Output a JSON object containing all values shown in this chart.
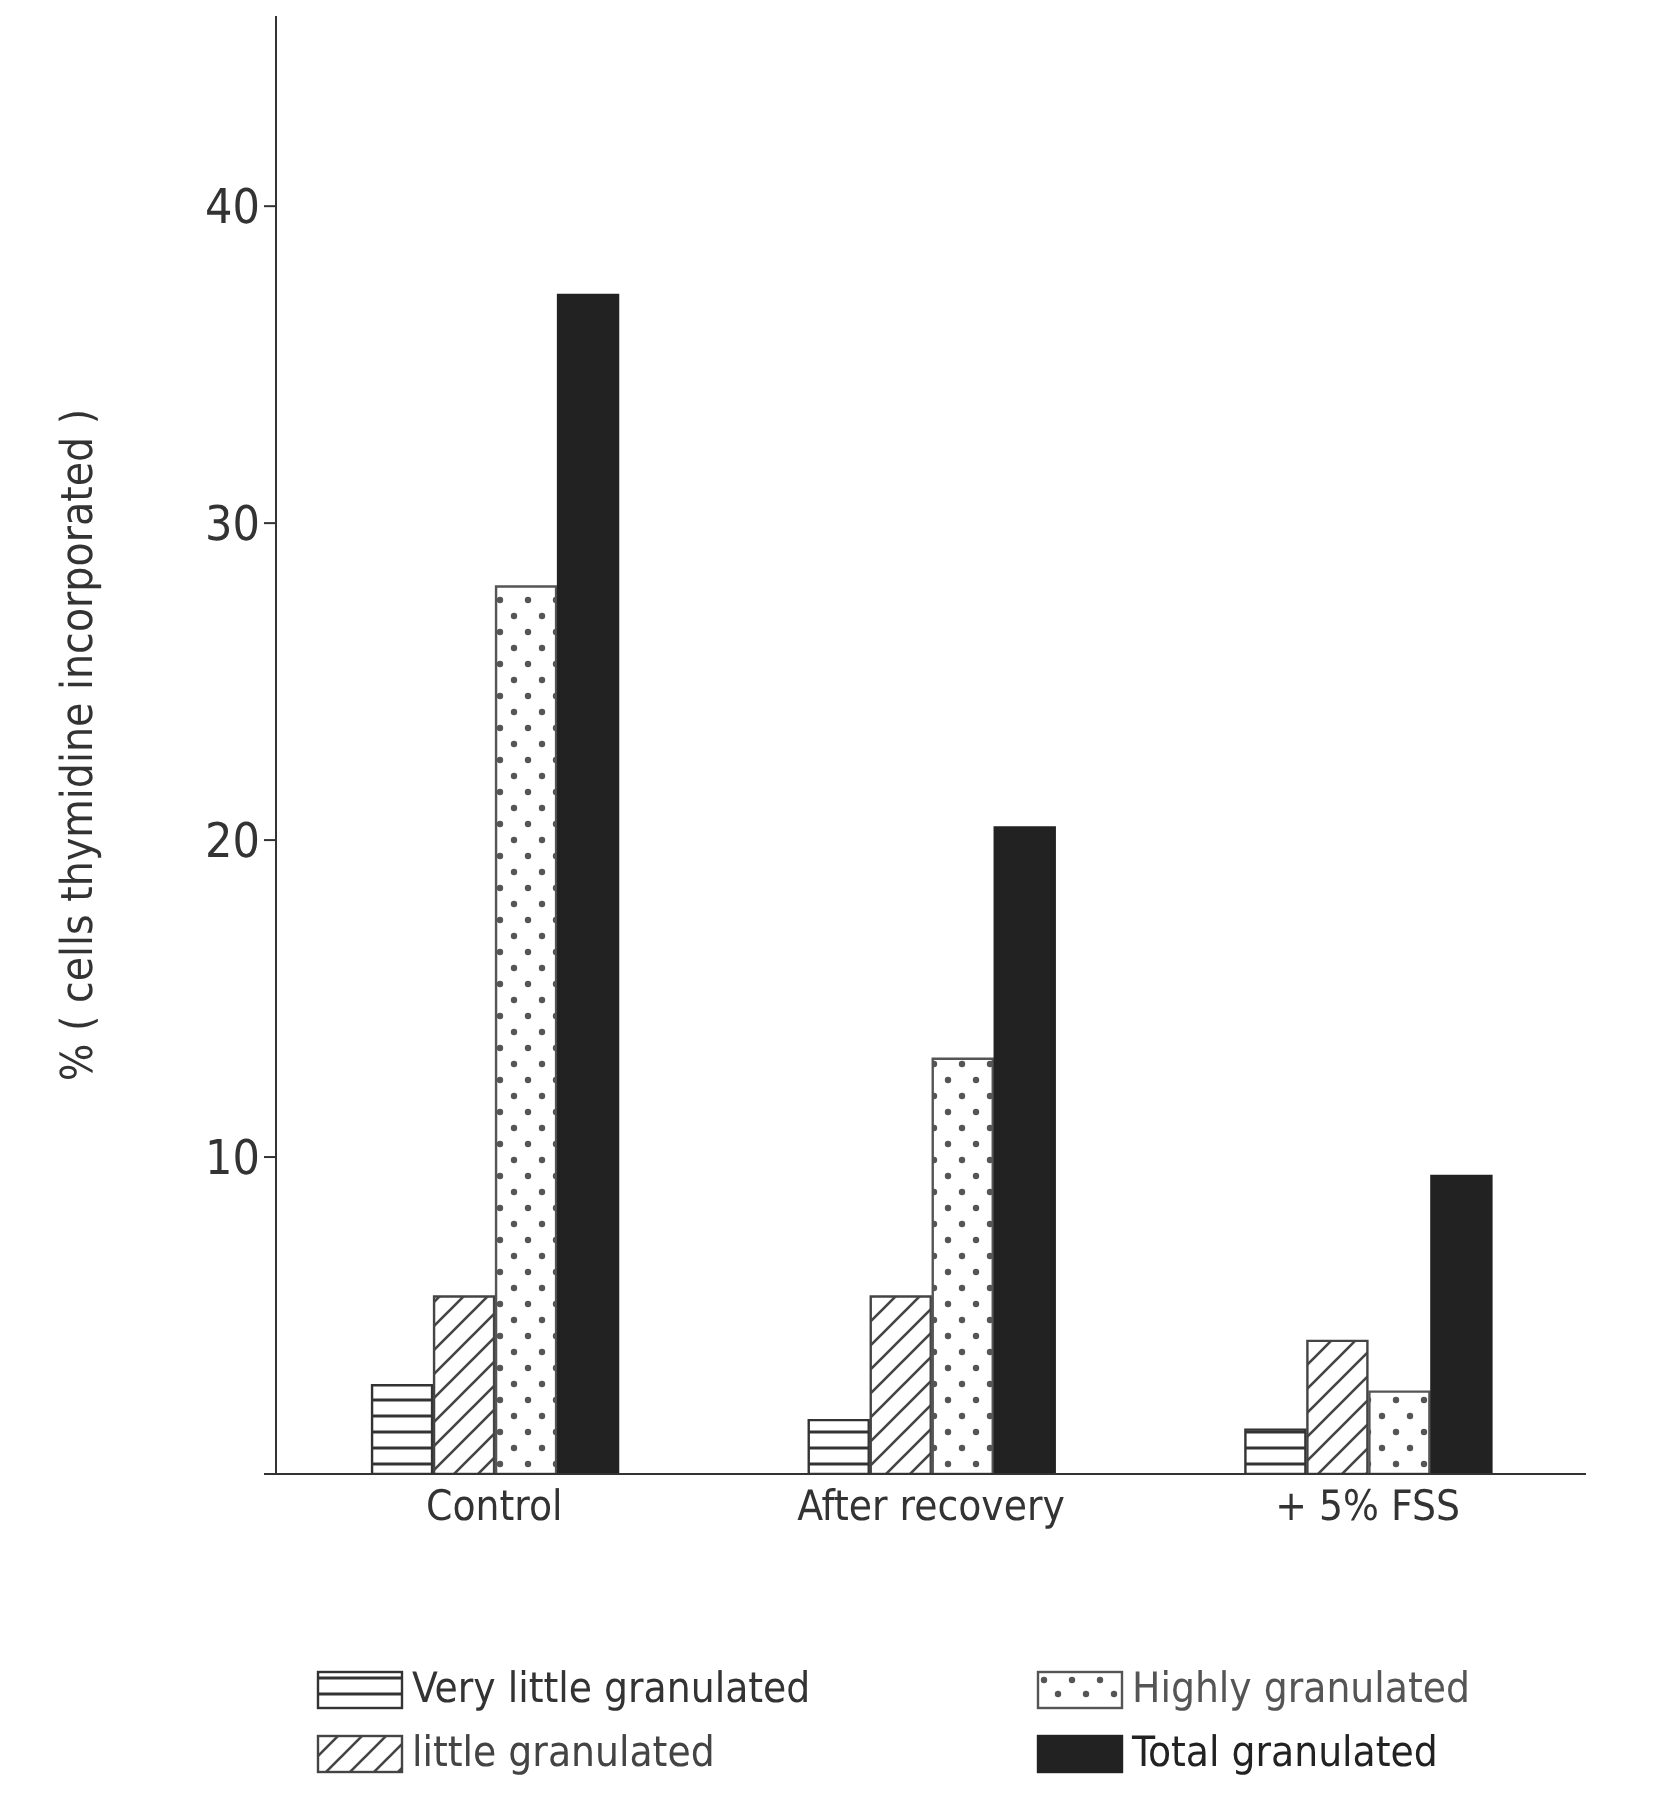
{
  "chart_data": {
    "type": "bar",
    "ylabel": "% ( cells thymidine incorporated )",
    "categories": [
      "Control",
      "After recovery",
      "+ 5% FSS"
    ],
    "series": [
      {
        "name": "Very little granulated",
        "color": "#333333",
        "values": [
          2.8,
          1.7,
          1.4
        ]
      },
      {
        "name": "little granulated",
        "color": "#444444",
        "values": [
          5.6,
          5.6,
          4.2
        ]
      },
      {
        "name": "Highly granulated",
        "color": "#555555",
        "values": [
          28,
          13.1,
          2.6
        ]
      },
      {
        "name": "Total granulated",
        "color": "#222222",
        "values": [
          37.2,
          20.4,
          9.4
        ]
      }
    ],
    "ylim": [
      0,
      46
    ],
    "yticks": [
      {
        "value": 0,
        "label": null
      },
      10,
      20,
      30,
      40
    ],
    "grid": false,
    "legend": "bottom"
  }
}
